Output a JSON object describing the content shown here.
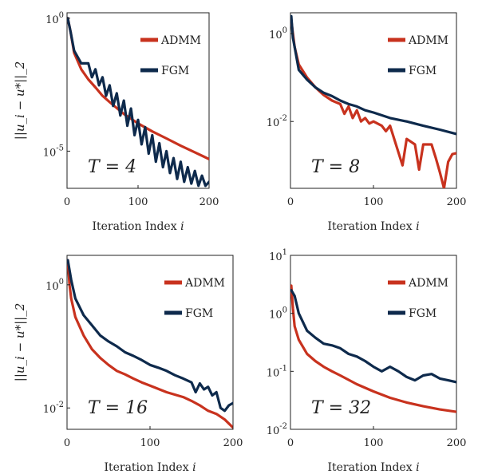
{
  "colors": {
    "ADMM": "#c8321e",
    "FGM": "#0e2a4c",
    "axis": "#222222"
  },
  "chart_data": [
    {
      "type": "line",
      "title": "",
      "xlabel": "Iteration Index i",
      "ylabel": "||u_i − u*||_2",
      "x_ticks": [
        0,
        100,
        200
      ],
      "y_ticks": [
        1,
        1e-05
      ],
      "y_tick_labels": [
        [
          "10",
          "0"
        ],
        [
          "10",
          "-5"
        ]
      ],
      "xlim": [
        0,
        200
      ],
      "ylim": [
        4e-07,
        1.6
      ],
      "yscale": "log",
      "annotation": "T = 4",
      "legend": [
        "ADMM",
        "FGM"
      ],
      "legend_position": "top-right",
      "series": [
        {
          "name": "ADMM",
          "x": [
            1,
            5,
            10,
            20,
            30,
            40,
            50,
            60,
            80,
            100,
            120,
            140,
            160,
            180,
            200
          ],
          "y": [
            1,
            0.3,
            0.05,
            0.012,
            0.005,
            0.0025,
            0.0012,
            0.0007,
            0.00025,
            0.00011,
            5.5e-05,
            3e-05,
            1.6e-05,
            9e-06,
            5e-06
          ]
        },
        {
          "name": "FGM",
          "x": [
            1,
            5,
            10,
            20,
            30,
            35,
            40,
            45,
            50,
            55,
            60,
            65,
            70,
            75,
            80,
            85,
            90,
            95,
            100,
            105,
            110,
            115,
            120,
            125,
            130,
            135,
            140,
            145,
            150,
            155,
            160,
            165,
            170,
            175,
            180,
            185,
            190,
            195,
            200
          ],
          "y": [
            1,
            0.3,
            0.06,
            0.02,
            0.02,
            0.006,
            0.012,
            0.003,
            0.006,
            0.0012,
            0.003,
            0.0005,
            0.0015,
            0.00022,
            0.0008,
            9e-05,
            0.0004,
            4e-05,
            0.00015,
            1.8e-05,
            8e-05,
            8e-06,
            4e-05,
            4e-06,
            2e-05,
            2.5e-06,
            1e-05,
            1.5e-06,
            5.5e-06,
            9e-07,
            4e-06,
            7e-07,
            2.5e-06,
            6e-07,
            1.8e-06,
            5e-07,
            1.2e-06,
            5e-07,
            7e-07
          ]
        }
      ]
    },
    {
      "type": "line",
      "title": "",
      "xlabel": "Iteration Index i",
      "ylabel": "",
      "x_ticks": [
        0,
        100,
        200
      ],
      "y_ticks": [
        1,
        0.01
      ],
      "y_tick_labels": [
        [
          "10",
          "0"
        ],
        [
          "10",
          "-2"
        ]
      ],
      "xlim": [
        0,
        200
      ],
      "ylim": [
        0.0003,
        3
      ],
      "yscale": "log",
      "annotation": "T = 8",
      "legend": [
        "ADMM",
        "FGM"
      ],
      "legend_position": "top-right",
      "series": [
        {
          "name": "ADMM",
          "x": [
            1,
            3,
            5,
            10,
            20,
            30,
            40,
            50,
            60,
            65,
            70,
            75,
            80,
            85,
            90,
            95,
            100,
            110,
            115,
            120,
            130,
            135,
            140,
            150,
            155,
            160,
            170,
            175,
            180,
            185,
            190,
            195,
            200
          ],
          "y": [
            2,
            1,
            0.5,
            0.2,
            0.1,
            0.06,
            0.04,
            0.03,
            0.025,
            0.015,
            0.022,
            0.012,
            0.018,
            0.01,
            0.012,
            0.009,
            0.01,
            0.008,
            0.006,
            0.008,
            0.002,
            0.001,
            0.004,
            0.003,
            0.0008,
            0.003,
            0.003,
            0.0015,
            0.0007,
            0.0003,
            0.0012,
            0.0018,
            0.0019
          ]
        },
        {
          "name": "FGM",
          "x": [
            1,
            3,
            5,
            10,
            20,
            30,
            40,
            50,
            60,
            70,
            80,
            90,
            100,
            120,
            140,
            160,
            180,
            200
          ],
          "y": [
            2.5,
            0.8,
            0.5,
            0.15,
            0.09,
            0.06,
            0.045,
            0.038,
            0.03,
            0.025,
            0.022,
            0.018,
            0.016,
            0.012,
            0.01,
            0.008,
            0.0065,
            0.0052
          ]
        }
      ]
    },
    {
      "type": "line",
      "title": "",
      "xlabel": "Iteration Index i",
      "ylabel": "||u_i − u*||_2",
      "x_ticks": [
        0,
        100,
        200
      ],
      "y_ticks": [
        1,
        0.01
      ],
      "y_tick_labels": [
        [
          "10",
          "0"
        ],
        [
          "10",
          "-2"
        ]
      ],
      "xlim": [
        0,
        200
      ],
      "ylim": [
        0.0045,
        3
      ],
      "yscale": "log",
      "annotation": "T = 16",
      "legend": [
        "ADMM",
        "FGM"
      ],
      "legend_position": "top-right",
      "series": [
        {
          "name": "ADMM",
          "x": [
            1,
            3,
            5,
            10,
            20,
            30,
            40,
            50,
            60,
            70,
            80,
            90,
            100,
            120,
            140,
            150,
            160,
            170,
            180,
            190,
            200
          ],
          "y": [
            2.5,
            1.0,
            0.6,
            0.3,
            0.15,
            0.09,
            0.065,
            0.05,
            0.04,
            0.035,
            0.03,
            0.026,
            0.023,
            0.018,
            0.015,
            0.013,
            0.011,
            0.009,
            0.008,
            0.0065,
            0.0048
          ]
        },
        {
          "name": "FGM",
          "x": [
            1,
            5,
            10,
            20,
            30,
            40,
            50,
            60,
            70,
            80,
            90,
            100,
            110,
            120,
            130,
            140,
            150,
            155,
            160,
            165,
            170,
            175,
            180,
            185,
            190,
            195,
            200
          ],
          "y": [
            2.5,
            1.2,
            0.6,
            0.32,
            0.22,
            0.15,
            0.12,
            0.1,
            0.08,
            0.07,
            0.06,
            0.05,
            0.045,
            0.04,
            0.034,
            0.03,
            0.026,
            0.018,
            0.025,
            0.02,
            0.022,
            0.016,
            0.018,
            0.01,
            0.009,
            0.011,
            0.012
          ]
        }
      ]
    },
    {
      "type": "line",
      "title": "",
      "xlabel": "Iteration Index i",
      "ylabel": "",
      "x_ticks": [
        0,
        100,
        200
      ],
      "y_ticks": [
        10,
        1,
        0.1,
        0.01
      ],
      "y_tick_labels": [
        [
          "10",
          "1"
        ],
        [
          "10",
          "0"
        ],
        [
          "10",
          "-1"
        ],
        [
          "10",
          "-2"
        ]
      ],
      "xlim": [
        0,
        200
      ],
      "ylim": [
        0.01,
        10
      ],
      "yscale": "log",
      "annotation": "T = 32",
      "legend": [
        "ADMM",
        "FGM"
      ],
      "legend_position": "top-right",
      "series": [
        {
          "name": "ADMM",
          "x": [
            1,
            3,
            5,
            10,
            20,
            30,
            40,
            50,
            60,
            80,
            100,
            120,
            140,
            160,
            180,
            200
          ],
          "y": [
            3,
            1.2,
            0.6,
            0.35,
            0.2,
            0.15,
            0.12,
            0.1,
            0.085,
            0.06,
            0.045,
            0.035,
            0.029,
            0.025,
            0.022,
            0.02
          ]
        },
        {
          "name": "FGM",
          "x": [
            1,
            5,
            10,
            20,
            30,
            40,
            50,
            60,
            70,
            80,
            90,
            100,
            110,
            120,
            130,
            140,
            150,
            160,
            170,
            180,
            190,
            200
          ],
          "y": [
            2.5,
            2.0,
            1.0,
            0.5,
            0.38,
            0.3,
            0.28,
            0.25,
            0.2,
            0.18,
            0.15,
            0.12,
            0.1,
            0.12,
            0.1,
            0.08,
            0.07,
            0.085,
            0.09,
            0.075,
            0.07,
            0.065
          ]
        }
      ]
    }
  ]
}
